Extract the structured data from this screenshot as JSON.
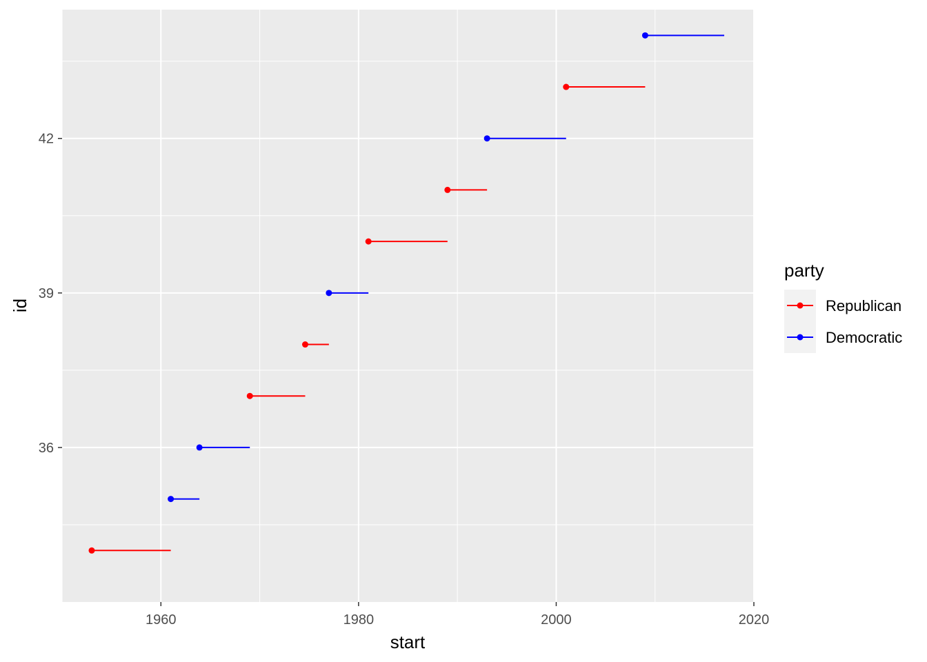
{
  "chart_data": {
    "type": "segment",
    "xlabel": "start",
    "ylabel": "id",
    "xlim": [
      1950,
      2020
    ],
    "ylim": [
      33,
      44.5
    ],
    "x_ticks": [
      1960,
      1980,
      2000,
      2020
    ],
    "y_ticks": [
      36,
      39,
      42
    ],
    "grid": true,
    "legend": {
      "title": "party",
      "position": "right",
      "entries": [
        {
          "name": "Republican",
          "color": "#ff0000"
        },
        {
          "name": "Democratic",
          "color": "#0000ff"
        }
      ]
    },
    "segments": [
      {
        "id": 34,
        "start": 1953,
        "end": 1961,
        "party": "Republican"
      },
      {
        "id": 35,
        "start": 1961,
        "end": 1963.9,
        "party": "Democratic"
      },
      {
        "id": 36,
        "start": 1963.9,
        "end": 1969,
        "party": "Democratic"
      },
      {
        "id": 37,
        "start": 1969,
        "end": 1974.6,
        "party": "Republican"
      },
      {
        "id": 38,
        "start": 1974.6,
        "end": 1977,
        "party": "Republican"
      },
      {
        "id": 39,
        "start": 1977,
        "end": 1981,
        "party": "Democratic"
      },
      {
        "id": 40,
        "start": 1981,
        "end": 1989,
        "party": "Republican"
      },
      {
        "id": 41,
        "start": 1989,
        "end": 1993,
        "party": "Republican"
      },
      {
        "id": 42,
        "start": 1993,
        "end": 2001,
        "party": "Democratic"
      },
      {
        "id": 43,
        "start": 2001,
        "end": 2009,
        "party": "Republican"
      },
      {
        "id": 44,
        "start": 2009,
        "end": 2017,
        "party": "Democratic"
      }
    ],
    "colors": {
      "panel_background": "#ebebeb",
      "gridline": "#ffffff"
    }
  }
}
